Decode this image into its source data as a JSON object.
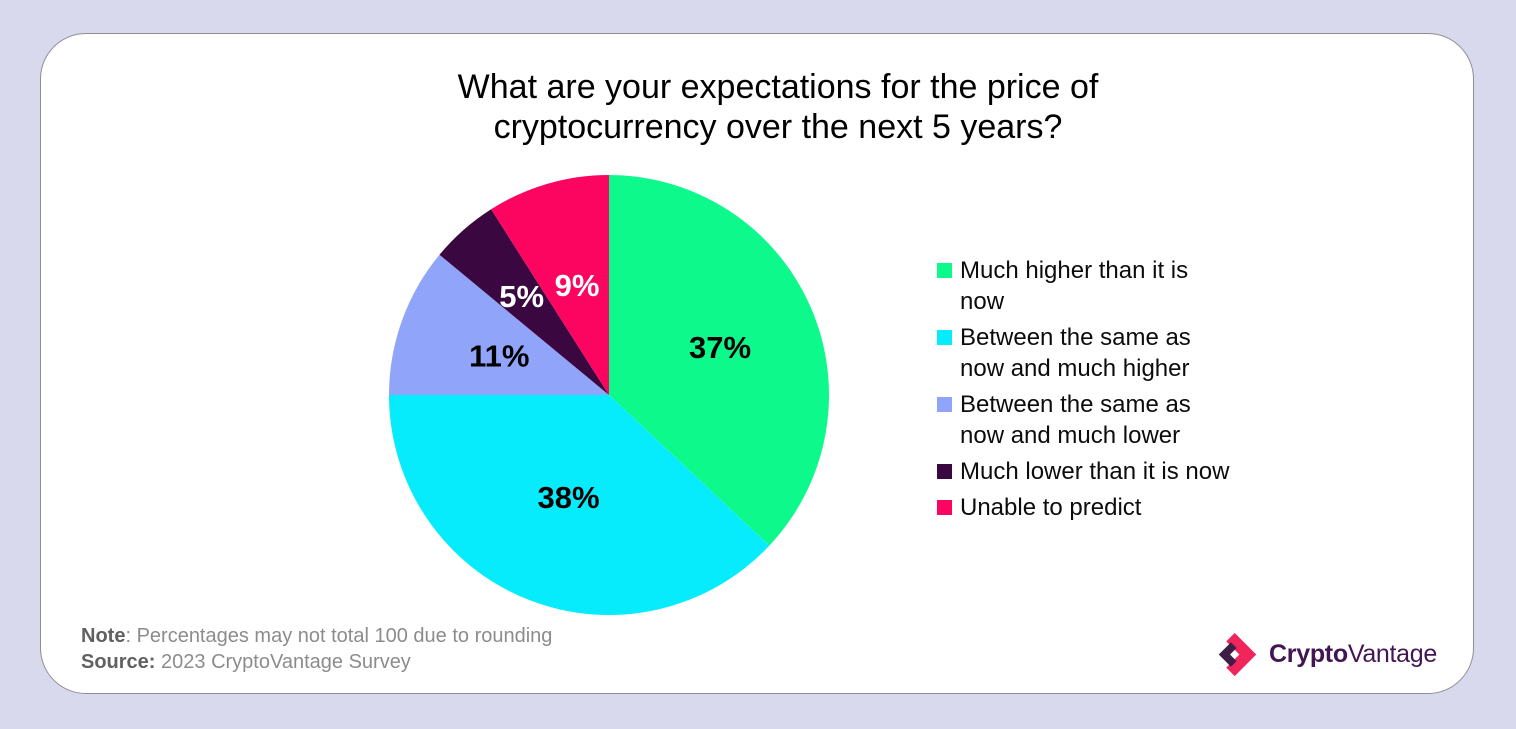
{
  "chart_data": {
    "type": "pie",
    "title": "What are your expectations for the price of cryptocurrency over the next 5 years?",
    "start_angle_deg": 0,
    "direction": "clockwise",
    "value_suffix": "%",
    "legend_position": "right",
    "series": [
      {
        "label": "Much higher than it is now",
        "value": 37,
        "color": "#0ef98c",
        "label_color": "#000000",
        "label_r": 0.55
      },
      {
        "label": "Between the same as now and much higher",
        "value": 38,
        "color": "#06ecfc",
        "label_color": "#000000",
        "label_r": 0.5
      },
      {
        "label": "Between the same as now and much lower",
        "value": 11,
        "color": "#90a5fa",
        "label_color": "#000000",
        "label_r": 0.53
      },
      {
        "label": "Much lower than it is now",
        "value": 5,
        "color": "#3a0740",
        "label_color": "#ffffff",
        "label_r": 0.6
      },
      {
        "label": "Unable to predict",
        "value": 9,
        "color": "#fb0560",
        "label_color": "#ffffff",
        "label_r": 0.52
      }
    ]
  },
  "note": {
    "label": "Note",
    "text": ": Percentages may not total 100 due to rounding"
  },
  "source": {
    "label": "Source:",
    "text": " 2023 CryptoVantage Survey"
  },
  "logo": {
    "brand_bold": "Crypto",
    "brand_regular": "Vantage",
    "icon": "diamond-chevrons-icon",
    "icon_pink": "#ef255c",
    "icon_purple": "#3e1d47",
    "text_color": "#421553"
  },
  "theme": {
    "background": "#d8d9ec",
    "card_background": "#ffffff",
    "card_border": "#8d8d95",
    "footnote_gray": "#8c8c8c",
    "footnote_bold_gray": "#616161"
  }
}
